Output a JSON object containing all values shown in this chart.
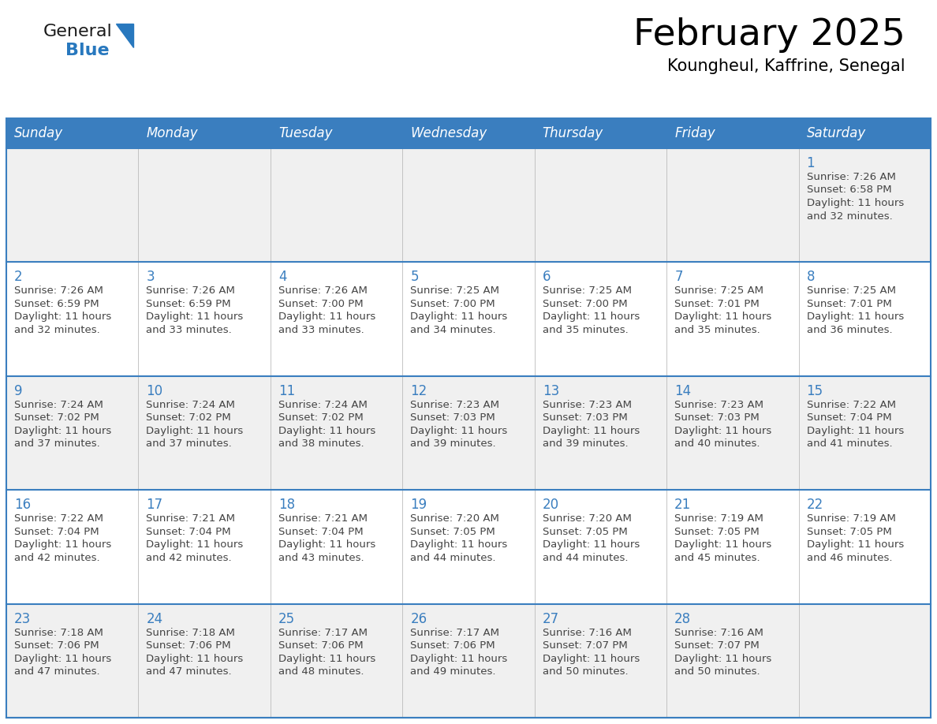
{
  "title": "February 2025",
  "subtitle": "Koungheul, Kaffrine, Senegal",
  "days_of_week": [
    "Sunday",
    "Monday",
    "Tuesday",
    "Wednesday",
    "Thursday",
    "Friday",
    "Saturday"
  ],
  "header_bg": "#3a7ebf",
  "header_text": "#ffffff",
  "cell_bg_white": "#ffffff",
  "cell_bg_gray": "#f0f0f0",
  "border_color": "#3a7ebf",
  "day_num_color": "#3a7ebf",
  "text_color": "#444444",
  "logo_general_color": "#1a1a1a",
  "logo_blue_color": "#2878be",
  "calendar_data": [
    [
      null,
      null,
      null,
      null,
      null,
      null,
      {
        "day": 1,
        "sunrise": "7:26 AM",
        "sunset": "6:58 PM",
        "daylight": "11 hours and 32 minutes."
      }
    ],
    [
      {
        "day": 2,
        "sunrise": "7:26 AM",
        "sunset": "6:59 PM",
        "daylight": "11 hours and 32 minutes."
      },
      {
        "day": 3,
        "sunrise": "7:26 AM",
        "sunset": "6:59 PM",
        "daylight": "11 hours and 33 minutes."
      },
      {
        "day": 4,
        "sunrise": "7:26 AM",
        "sunset": "7:00 PM",
        "daylight": "11 hours and 33 minutes."
      },
      {
        "day": 5,
        "sunrise": "7:25 AM",
        "sunset": "7:00 PM",
        "daylight": "11 hours and 34 minutes."
      },
      {
        "day": 6,
        "sunrise": "7:25 AM",
        "sunset": "7:00 PM",
        "daylight": "11 hours and 35 minutes."
      },
      {
        "day": 7,
        "sunrise": "7:25 AM",
        "sunset": "7:01 PM",
        "daylight": "11 hours and 35 minutes."
      },
      {
        "day": 8,
        "sunrise": "7:25 AM",
        "sunset": "7:01 PM",
        "daylight": "11 hours and 36 minutes."
      }
    ],
    [
      {
        "day": 9,
        "sunrise": "7:24 AM",
        "sunset": "7:02 PM",
        "daylight": "11 hours and 37 minutes."
      },
      {
        "day": 10,
        "sunrise": "7:24 AM",
        "sunset": "7:02 PM",
        "daylight": "11 hours and 37 minutes."
      },
      {
        "day": 11,
        "sunrise": "7:24 AM",
        "sunset": "7:02 PM",
        "daylight": "11 hours and 38 minutes."
      },
      {
        "day": 12,
        "sunrise": "7:23 AM",
        "sunset": "7:03 PM",
        "daylight": "11 hours and 39 minutes."
      },
      {
        "day": 13,
        "sunrise": "7:23 AM",
        "sunset": "7:03 PM",
        "daylight": "11 hours and 39 minutes."
      },
      {
        "day": 14,
        "sunrise": "7:23 AM",
        "sunset": "7:03 PM",
        "daylight": "11 hours and 40 minutes."
      },
      {
        "day": 15,
        "sunrise": "7:22 AM",
        "sunset": "7:04 PM",
        "daylight": "11 hours and 41 minutes."
      }
    ],
    [
      {
        "day": 16,
        "sunrise": "7:22 AM",
        "sunset": "7:04 PM",
        "daylight": "11 hours and 42 minutes."
      },
      {
        "day": 17,
        "sunrise": "7:21 AM",
        "sunset": "7:04 PM",
        "daylight": "11 hours and 42 minutes."
      },
      {
        "day": 18,
        "sunrise": "7:21 AM",
        "sunset": "7:04 PM",
        "daylight": "11 hours and 43 minutes."
      },
      {
        "day": 19,
        "sunrise": "7:20 AM",
        "sunset": "7:05 PM",
        "daylight": "11 hours and 44 minutes."
      },
      {
        "day": 20,
        "sunrise": "7:20 AM",
        "sunset": "7:05 PM",
        "daylight": "11 hours and 44 minutes."
      },
      {
        "day": 21,
        "sunrise": "7:19 AM",
        "sunset": "7:05 PM",
        "daylight": "11 hours and 45 minutes."
      },
      {
        "day": 22,
        "sunrise": "7:19 AM",
        "sunset": "7:05 PM",
        "daylight": "11 hours and 46 minutes."
      }
    ],
    [
      {
        "day": 23,
        "sunrise": "7:18 AM",
        "sunset": "7:06 PM",
        "daylight": "11 hours and 47 minutes."
      },
      {
        "day": 24,
        "sunrise": "7:18 AM",
        "sunset": "7:06 PM",
        "daylight": "11 hours and 47 minutes."
      },
      {
        "day": 25,
        "sunrise": "7:17 AM",
        "sunset": "7:06 PM",
        "daylight": "11 hours and 48 minutes."
      },
      {
        "day": 26,
        "sunrise": "7:17 AM",
        "sunset": "7:06 PM",
        "daylight": "11 hours and 49 minutes."
      },
      {
        "day": 27,
        "sunrise": "7:16 AM",
        "sunset": "7:07 PM",
        "daylight": "11 hours and 50 minutes."
      },
      {
        "day": 28,
        "sunrise": "7:16 AM",
        "sunset": "7:07 PM",
        "daylight": "11 hours and 50 minutes."
      },
      null
    ]
  ],
  "row_bg_colors": [
    "#f0f0f0",
    "#ffffff",
    "#f0f0f0",
    "#ffffff",
    "#f0f0f0"
  ]
}
